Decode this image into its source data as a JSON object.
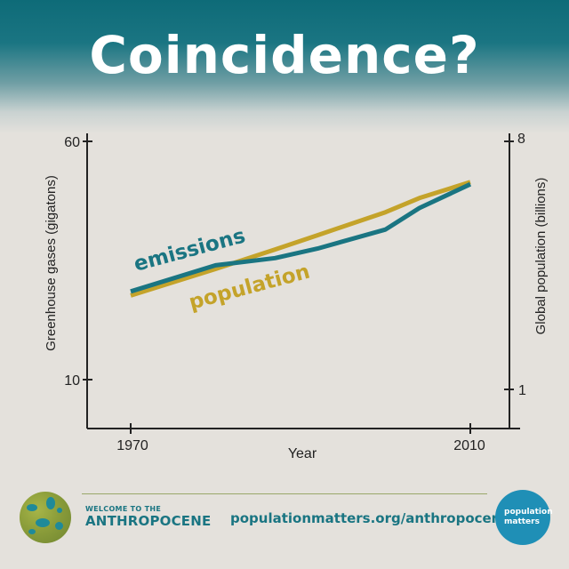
{
  "header": {
    "title": "Coincidence?"
  },
  "chart_data": {
    "type": "line",
    "x_label": "Year",
    "x_ticks": [
      "1970",
      "2010"
    ],
    "xlim": [
      1970,
      2010
    ],
    "y_left_label": "Greenhouse gases (gigatons)",
    "y_left_ticks": [
      "60",
      "10"
    ],
    "y_left_lim": [
      10,
      60
    ],
    "y_right_label": "Global population (billions)",
    "y_right_ticks": [
      "8",
      "1"
    ],
    "y_right_lim": [
      1,
      8
    ],
    "grid": false,
    "legend": "inline labels on the lines",
    "series": [
      {
        "name": "emissions",
        "axis": "left",
        "color": "#1a7582",
        "x": [
          1970,
          1980,
          1987,
          1992,
          2000,
          2004,
          2010
        ],
        "y": [
          28.5,
          34,
          35.5,
          37.5,
          41.5,
          46,
          51
        ]
      },
      {
        "name": "population",
        "axis": "right",
        "color": "#c4a32a",
        "x": [
          1970,
          1980,
          1987,
          1992,
          2000,
          2004,
          2010
        ],
        "y": [
          3.65,
          4.4,
          4.95,
          5.35,
          6.0,
          6.4,
          6.85
        ]
      }
    ]
  },
  "footer": {
    "welcome": "WELCOME TO THE",
    "anthropocene": "ANTHROPOCENE",
    "url": "populationmatters.org/anthropocene",
    "badge_line1": "population",
    "badge_line2": "matters"
  }
}
